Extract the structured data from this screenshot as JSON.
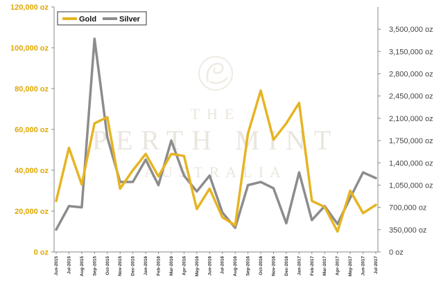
{
  "colors": {
    "gold": "#E6B422",
    "silver": "#8C8C8C",
    "axis": "#888888",
    "left_tick": "#E0A800"
  },
  "watermark": {
    "line1": "THE",
    "line2": "PERTH MINT",
    "line3": "AUSTRALIA",
    "logo_icon": "swan-logo-icon"
  },
  "chart_data": {
    "type": "line",
    "title": "",
    "xlabel": "",
    "ylabel": "",
    "legend_position": "top-left",
    "grid": false,
    "x": [
      "Jun-2015",
      "Jul-2015",
      "Aug-2015",
      "Sep-2015",
      "Oct-2015",
      "Nov-2015",
      "Dec-2015",
      "Jan-2016",
      "Feb-2016",
      "Mar-2016",
      "Apr-2016",
      "May-2016",
      "Jun-2016",
      "Jul-2016",
      "Aug-2016",
      "Sep-2016",
      "Oct-2016",
      "Nov-2016",
      "Dec-2016",
      "Jan-2017",
      "Feb-2017",
      "Mar-2017",
      "Apr-2017",
      "May-2017",
      "Jun-2017",
      "Jul-2017"
    ],
    "x_tick_labels": [
      "Jun-2015",
      "Jul-2015",
      "Aug-2015",
      "Sep-2015",
      "Oct-2015",
      "Nov-2015",
      "Dec-2015",
      "Jan-2016",
      "Feb-2016",
      "Mar-2016",
      "Apr-2016",
      "May-2016",
      "Jun-2016",
      "Jul-2016",
      "Aug-2016",
      "Sep-2016",
      "Oct-2016",
      "Nov-2016",
      "Dec-2016",
      "Jan-2017",
      "Feb-2017",
      "Mar-2017",
      "Apr-2017",
      "May-2017",
      "Jun-2017",
      "Jul-2017"
    ],
    "y_left": {
      "ylim": [
        0,
        120000
      ],
      "ticks": [
        "0 oz",
        "20,000 oz",
        "40,000 oz",
        "60,000 oz",
        "80,000 oz",
        "100,000 oz",
        "120,000 oz"
      ]
    },
    "y_right": {
      "ylim": [
        0,
        3850000
      ],
      "ticks": [
        "0 oz",
        "350,000 oz",
        "700,000 oz",
        "1,050,000 oz",
        "1,400,000 oz",
        "1,750,000 oz",
        "2,100,000 oz",
        "2,450,000 oz",
        "2,800,000 oz",
        "3,150,000 oz",
        "3,500,000 oz"
      ]
    },
    "series": [
      {
        "name": "Gold",
        "axis": "left",
        "values": [
          25000,
          51000,
          33000,
          63000,
          66000,
          31000,
          40000,
          48000,
          37000,
          48000,
          47000,
          21000,
          31000,
          17000,
          13000,
          58000,
          79000,
          55000,
          63000,
          73000,
          25000,
          22000,
          10000,
          30000,
          19000,
          23000
        ]
      },
      {
        "name": "Silver",
        "axis": "right",
        "values": [
          350000,
          720000,
          700000,
          3350000,
          1800000,
          1100000,
          1100000,
          1450000,
          1050000,
          1750000,
          1200000,
          950000,
          1200000,
          620000,
          380000,
          1050000,
          1100000,
          1000000,
          450000,
          1250000,
          500000,
          720000,
          440000,
          850000,
          1250000,
          1160000
        ]
      }
    ]
  }
}
